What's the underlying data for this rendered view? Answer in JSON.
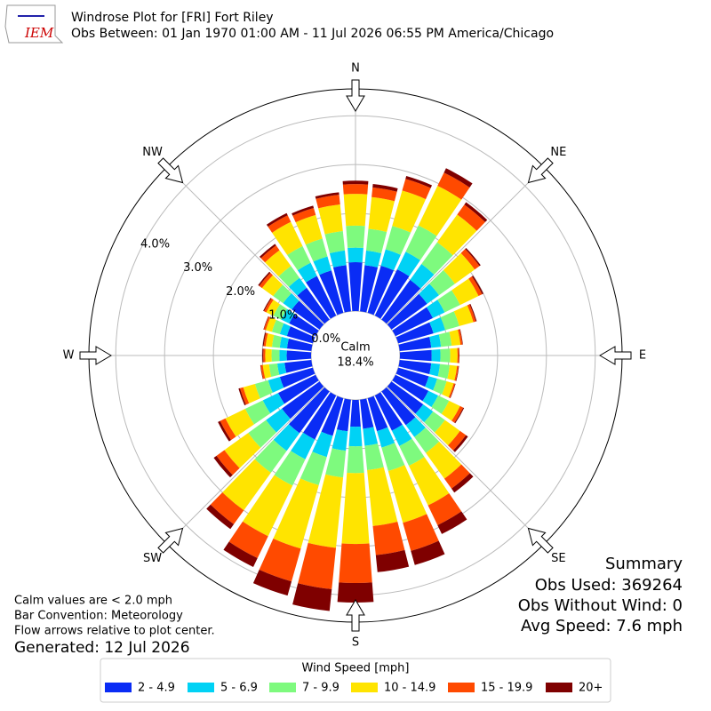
{
  "header": {
    "title": "Windrose Plot for [FRI] Fort Riley",
    "subtitle": "Obs Between: 01 Jan 1970 01:00 AM - 11 Jul 2026 06:55 PM America/Chicago",
    "logo_text": "IEM"
  },
  "chart_data": {
    "type": "windrose",
    "x": [
      0,
      10,
      20,
      30,
      40,
      50,
      60,
      70,
      80,
      90,
      100,
      110,
      120,
      130,
      140,
      150,
      160,
      170,
      180,
      190,
      200,
      210,
      220,
      230,
      240,
      250,
      260,
      270,
      280,
      290,
      300,
      310,
      320,
      330,
      340,
      350
    ],
    "compass_labels": [
      "N",
      "NE",
      "E",
      "SE",
      "S",
      "SW",
      "W",
      "NW"
    ],
    "calm_label": "Calm",
    "calm_percent": "18.4%",
    "ylim": [
      0,
      4.55
    ],
    "yticks": [
      {
        "value": 0,
        "label": "0.0%"
      },
      {
        "value": 1,
        "label": "1.0%"
      },
      {
        "value": 2,
        "label": "2.0%"
      },
      {
        "value": 3,
        "label": "3.0%"
      },
      {
        "value": 4,
        "label": "4.0%"
      }
    ],
    "grid": true,
    "legend_title": "Wind Speed [mph]",
    "series": [
      {
        "name": "2 - 4.9",
        "color": "#0a2cf5",
        "values": [
          1.0,
          0.95,
          1.0,
          1.05,
          1.0,
          0.9,
          0.85,
          0.75,
          0.65,
          0.65,
          0.65,
          0.65,
          0.75,
          0.8,
          0.85,
          0.8,
          0.7,
          0.6,
          0.55,
          0.65,
          0.8,
          1.0,
          1.05,
          0.95,
          0.85,
          0.7,
          0.55,
          0.5,
          0.5,
          0.55,
          0.6,
          0.7,
          0.8,
          0.9,
          0.9,
          0.95
        ]
      },
      {
        "name": "5 - 6.9",
        "color": "#00d2f5",
        "values": [
          0.3,
          0.3,
          0.35,
          0.4,
          0.4,
          0.3,
          0.27,
          0.25,
          0.2,
          0.18,
          0.18,
          0.18,
          0.22,
          0.25,
          0.3,
          0.35,
          0.35,
          0.35,
          0.4,
          0.4,
          0.45,
          0.45,
          0.45,
          0.4,
          0.35,
          0.25,
          0.15,
          0.15,
          0.15,
          0.15,
          0.18,
          0.22,
          0.25,
          0.3,
          0.3,
          0.3
        ]
      },
      {
        "name": "7 - 9.9",
        "color": "#7efa7e",
        "values": [
          0.45,
          0.45,
          0.5,
          0.6,
          0.55,
          0.4,
          0.35,
          0.3,
          0.22,
          0.2,
          0.2,
          0.2,
          0.25,
          0.3,
          0.4,
          0.45,
          0.5,
          0.5,
          0.55,
          0.55,
          0.6,
          0.6,
          0.55,
          0.45,
          0.4,
          0.28,
          0.17,
          0.16,
          0.16,
          0.17,
          0.18,
          0.25,
          0.3,
          0.38,
          0.38,
          0.4
        ]
      },
      {
        "name": "10 - 14.9",
        "color": "#ffe400",
        "values": [
          0.65,
          0.65,
          0.75,
          0.9,
          0.7,
          0.5,
          0.42,
          0.3,
          0.18,
          0.15,
          0.15,
          0.15,
          0.25,
          0.38,
          0.65,
          0.9,
          1.1,
          1.15,
          1.45,
          1.45,
          1.35,
          1.15,
          0.95,
          0.6,
          0.45,
          0.25,
          0.13,
          0.13,
          0.13,
          0.13,
          0.16,
          0.28,
          0.4,
          0.55,
          0.5,
          0.55
        ]
      },
      {
        "name": "15 - 19.9",
        "color": "#ff4a00",
        "values": [
          0.2,
          0.2,
          0.25,
          0.3,
          0.25,
          0.12,
          0.08,
          0.05,
          0.04,
          0.03,
          0.03,
          0.03,
          0.07,
          0.15,
          0.25,
          0.45,
          0.6,
          0.6,
          0.8,
          0.85,
          0.7,
          0.5,
          0.35,
          0.2,
          0.12,
          0.07,
          0.04,
          0.04,
          0.04,
          0.04,
          0.05,
          0.07,
          0.12,
          0.15,
          0.15,
          0.2
        ]
      },
      {
        "name": "20+",
        "color": "#7f0000",
        "values": [
          0.07,
          0.07,
          0.06,
          0.1,
          0.06,
          0.03,
          0.03,
          0.02,
          0.01,
          0.01,
          0.01,
          0.01,
          0.02,
          0.05,
          0.1,
          0.2,
          0.3,
          0.35,
          0.4,
          0.45,
          0.3,
          0.2,
          0.12,
          0.07,
          0.05,
          0.03,
          0.01,
          0.02,
          0.02,
          0.01,
          0.02,
          0.03,
          0.04,
          0.05,
          0.05,
          0.05
        ]
      }
    ]
  },
  "notes": [
    "Calm values are < 2.0 mph",
    "Bar Convention: Meteorology",
    "Flow arrows relative to plot center."
  ],
  "generated": "Generated: 12 Jul 2026",
  "summary": [
    "Summary",
    "Obs Used: 369264",
    "Obs Without Wind: 0",
    "Avg Speed: 7.6 mph"
  ]
}
